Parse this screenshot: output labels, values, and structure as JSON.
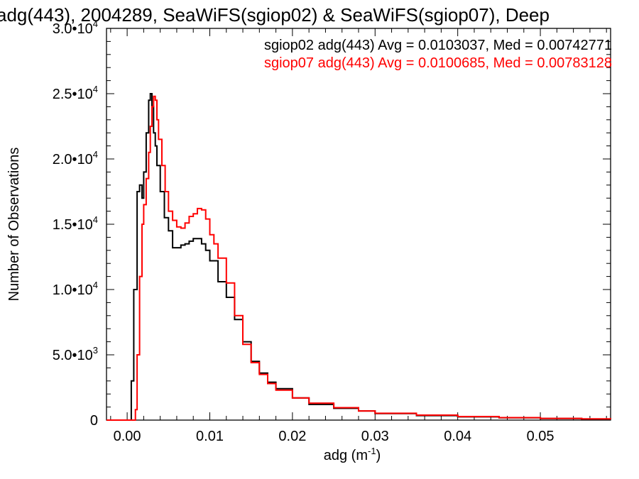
{
  "chart_data": {
    "type": "line",
    "title": "adg(443), 2004289, SeaWiFS(sgiop02) & SeaWiFS(sgiop07), Deep",
    "xlabel": "adg (m",
    "xlabel_sup": "-1",
    "xlabel_end": ")",
    "ylabel": "Number of Observations",
    "xlim": [
      -0.0025,
      0.0585
    ],
    "ylim": [
      0,
      30000
    ],
    "x_ticks": [
      0.0,
      0.01,
      0.02,
      0.03,
      0.04,
      0.05
    ],
    "x_tick_labels": [
      "0.00",
      "0.01",
      "0.02",
      "0.03",
      "0.04",
      "0.05"
    ],
    "y_ticks": [
      0,
      5000,
      10000,
      15000,
      20000,
      25000,
      30000
    ],
    "y_tick_labels": [
      {
        "mant": "0",
        "exp": ""
      },
      {
        "mant": "5.0•10",
        "exp": "3"
      },
      {
        "mant": "1.0•10",
        "exp": "4"
      },
      {
        "mant": "1.5•10",
        "exp": "4"
      },
      {
        "mant": "2.0•10",
        "exp": "4"
      },
      {
        "mant": "2.5•10",
        "exp": "4"
      },
      {
        "mant": "3.0•10",
        "exp": "4"
      }
    ],
    "grid": false,
    "legend_position": "top-right",
    "series": [
      {
        "name": "sgiop02 adg(443) Avg = 0.0103037, Med = 0.00742771",
        "color": "#000000",
        "x": [
          -0.0025,
          0.0,
          0.0005,
          0.0008,
          0.0012,
          0.0015,
          0.0018,
          0.002,
          0.0023,
          0.0026,
          0.0028,
          0.003,
          0.0032,
          0.0034,
          0.0036,
          0.004,
          0.0045,
          0.005,
          0.0055,
          0.006,
          0.0065,
          0.007,
          0.0075,
          0.008,
          0.0085,
          0.009,
          0.0095,
          0.01,
          0.011,
          0.012,
          0.013,
          0.014,
          0.015,
          0.016,
          0.017,
          0.018,
          0.02,
          0.022,
          0.025,
          0.028,
          0.03,
          0.035,
          0.04,
          0.045,
          0.05,
          0.055,
          0.0585
        ],
        "y": [
          0,
          0,
          3000,
          10000,
          17500,
          18000,
          17000,
          19000,
          22000,
          24500,
          25000,
          24000,
          22000,
          21000,
          19500,
          17500,
          15500,
          14500,
          13200,
          13200,
          13400,
          13500,
          13700,
          13900,
          13900,
          13500,
          13000,
          12200,
          10600,
          9400,
          7700,
          6000,
          4500,
          3600,
          2900,
          2400,
          1700,
          1200,
          900,
          700,
          500,
          350,
          250,
          180,
          120,
          80,
          60
        ]
      },
      {
        "name": "sgiop07 adg(443) Avg = 0.0100685, Med = 0.00783128",
        "color": "#ff0000",
        "x": [
          -0.0025,
          0.0008,
          0.001,
          0.0012,
          0.0015,
          0.0018,
          0.002,
          0.0023,
          0.0026,
          0.0028,
          0.003,
          0.0032,
          0.0034,
          0.0036,
          0.0038,
          0.0042,
          0.0046,
          0.005,
          0.0055,
          0.006,
          0.0065,
          0.007,
          0.0075,
          0.008,
          0.0085,
          0.009,
          0.0095,
          0.01,
          0.0105,
          0.011,
          0.012,
          0.013,
          0.014,
          0.015,
          0.016,
          0.017,
          0.018,
          0.02,
          0.022,
          0.025,
          0.028,
          0.03,
          0.035,
          0.04,
          0.045,
          0.05,
          0.055,
          0.0585
        ],
        "y": [
          0,
          0,
          800,
          5000,
          11000,
          15000,
          16500,
          18500,
          20500,
          22500,
          24000,
          24800,
          24500,
          23000,
          21500,
          19500,
          17500,
          16000,
          15300,
          14800,
          14700,
          15100,
          15600,
          15800,
          16200,
          16100,
          15400,
          14200,
          13500,
          12400,
          10500,
          8000,
          5800,
          4400,
          3500,
          2800,
          2300,
          1700,
          1300,
          950,
          700,
          520,
          380,
          270,
          190,
          130,
          90,
          60
        ]
      }
    ]
  }
}
